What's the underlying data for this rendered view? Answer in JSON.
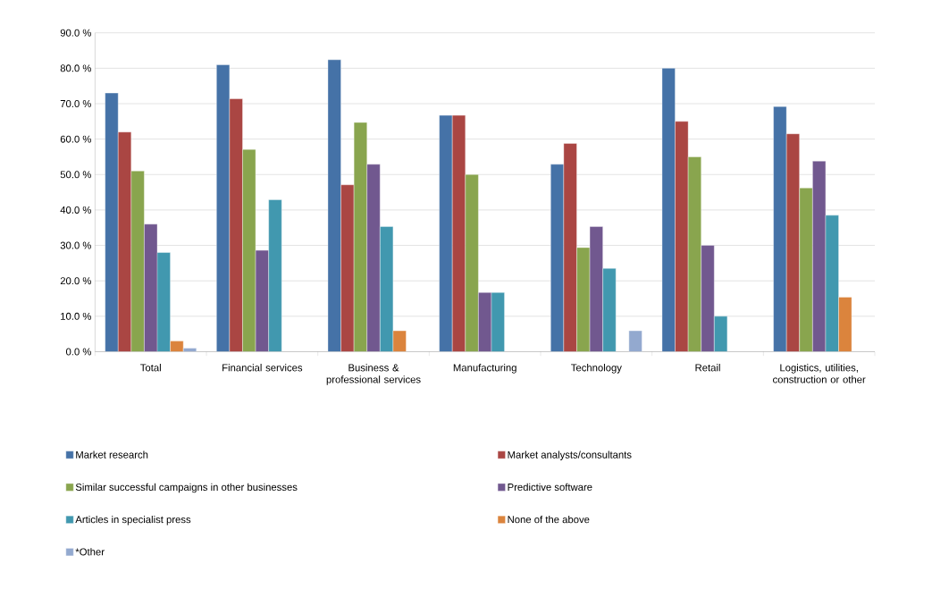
{
  "chart_data": {
    "type": "bar",
    "categories": [
      "Total",
      "Financial services",
      "Business & professional services",
      "Manufacturing",
      "Technology",
      "Retail",
      "Logistics, utilities, construction or other"
    ],
    "series": [
      {
        "name": "Market research",
        "color": "#4572a7",
        "values": [
          73,
          81,
          82.4,
          66.7,
          52.9,
          80,
          69.2
        ]
      },
      {
        "name": "Market analysts/consultants",
        "color": "#aa4643",
        "values": [
          62,
          71.4,
          47.1,
          66.7,
          58.8,
          65,
          61.5
        ]
      },
      {
        "name": "Similar successful campaigns in other businesses",
        "color": "#89a54e",
        "values": [
          51,
          57.1,
          64.7,
          50,
          29.4,
          55,
          46.2
        ]
      },
      {
        "name": "Predictive software",
        "color": "#71588f",
        "values": [
          36,
          28.6,
          52.9,
          16.7,
          35.3,
          30,
          53.8
        ]
      },
      {
        "name": "Articles in specialist press",
        "color": "#4198af",
        "values": [
          28,
          42.9,
          35.3,
          16.7,
          23.5,
          10,
          38.5
        ]
      },
      {
        "name": "None of the above",
        "color": "#db843d",
        "values": [
          3,
          null,
          5.9,
          null,
          null,
          null,
          15.4
        ]
      },
      {
        "name": "*Other",
        "color": "#93a9cf",
        "values": [
          1,
          null,
          null,
          null,
          5.9,
          null,
          null
        ]
      }
    ],
    "ylim": [
      0,
      90
    ],
    "yticks": [
      {
        "value": 0,
        "label": "0.0 %"
      },
      {
        "value": 10,
        "label": "10.0 %"
      },
      {
        "value": 20,
        "label": "20.0 %"
      },
      {
        "value": 30,
        "label": "30.0 %"
      },
      {
        "value": 40,
        "label": "40.0 %"
      },
      {
        "value": 50,
        "label": "50.0 %"
      },
      {
        "value": 60,
        "label": "60.0 %"
      },
      {
        "value": 70,
        "label": "70.0 %"
      },
      {
        "value": 80,
        "label": "80.0 %"
      },
      {
        "value": 90,
        "label": "90.0 %"
      }
    ],
    "grid": "y",
    "legend": "bottom"
  }
}
